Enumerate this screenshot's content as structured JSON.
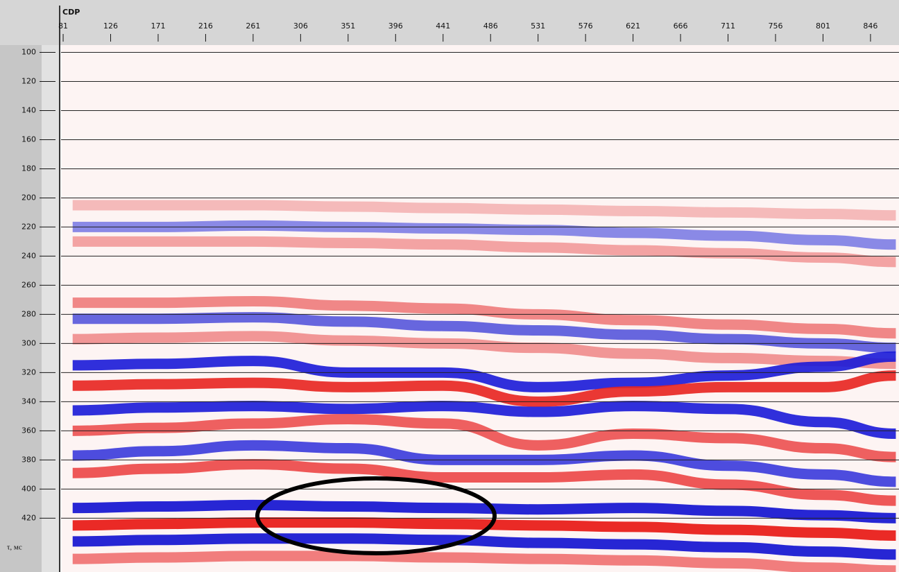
{
  "chart_data": {
    "type": "seismic",
    "x_label": "CDP",
    "y_label": "τ, мс",
    "xlim": [
      79,
      873
    ],
    "ylim": [
      95,
      457
    ],
    "y_inverted": true,
    "grid": true,
    "xticks": [
      81,
      126,
      171,
      216,
      261,
      306,
      351,
      396,
      441,
      486,
      531,
      576,
      621,
      666,
      711,
      756,
      801,
      846
    ],
    "yticks": [
      100,
      120,
      140,
      160,
      180,
      200,
      220,
      240,
      260,
      280,
      300,
      320,
      340,
      360,
      380,
      400,
      420
    ],
    "x": [
      90,
      171,
      261,
      351,
      441,
      531,
      621,
      711,
      801,
      870
    ],
    "series": [
      {
        "color": "#f4b4b4",
        "values": [
          205,
          205,
          205,
          206,
          207,
          208,
          209,
          210,
          211,
          212
        ]
      },
      {
        "color": "#7d7de4",
        "values": [
          220,
          220,
          219,
          220,
          221,
          222,
          224,
          226,
          229,
          232
        ]
      },
      {
        "color": "#f29a9a",
        "values": [
          230,
          230,
          230,
          231,
          232,
          234,
          236,
          238,
          241,
          244
        ]
      },
      {
        "color": "#ee7b7b",
        "values": [
          272,
          272,
          271,
          274,
          276,
          280,
          284,
          287,
          290,
          293
        ]
      },
      {
        "color": "#5656dc",
        "values": [
          283,
          283,
          282,
          285,
          288,
          291,
          294,
          297,
          300,
          303
        ]
      },
      {
        "color": "#f08c8c",
        "values": [
          297,
          296,
          295,
          298,
          300,
          303,
          307,
          310,
          312,
          314
        ]
      },
      {
        "color": "#1a1ad8",
        "values": [
          315,
          314,
          312,
          320,
          320,
          330,
          327,
          322,
          316,
          309
        ]
      },
      {
        "color": "#e8231f",
        "values": [
          329,
          328,
          327,
          330,
          329,
          340,
          333,
          330,
          330,
          322
        ]
      },
      {
        "color": "#1a1ad8",
        "values": [
          346,
          344,
          343,
          345,
          343,
          347,
          343,
          345,
          354,
          362
        ]
      },
      {
        "color": "#ec5050",
        "values": [
          360,
          358,
          355,
          352,
          355,
          370,
          362,
          365,
          372,
          378
        ]
      },
      {
        "color": "#3a3adc",
        "values": [
          377,
          374,
          370,
          372,
          380,
          380,
          377,
          384,
          390,
          395
        ]
      },
      {
        "color": "#ec4646",
        "values": [
          389,
          386,
          383,
          386,
          392,
          392,
          390,
          397,
          404,
          408
        ]
      },
      {
        "color": "#1010d0",
        "values": [
          413,
          412,
          411,
          412,
          413,
          414,
          413,
          415,
          418,
          420
        ]
      },
      {
        "color": "#e8140f",
        "values": [
          425,
          424,
          423,
          423,
          424,
          425,
          426,
          428,
          430,
          432
        ]
      },
      {
        "color": "#1010d0",
        "values": [
          436,
          435,
          434,
          434,
          435,
          437,
          438,
          440,
          443,
          445
        ]
      },
      {
        "color": "#f07070",
        "values": [
          448,
          447,
          446,
          446,
          447,
          448,
          449,
          451,
          454,
          456
        ]
      }
    ]
  }
}
